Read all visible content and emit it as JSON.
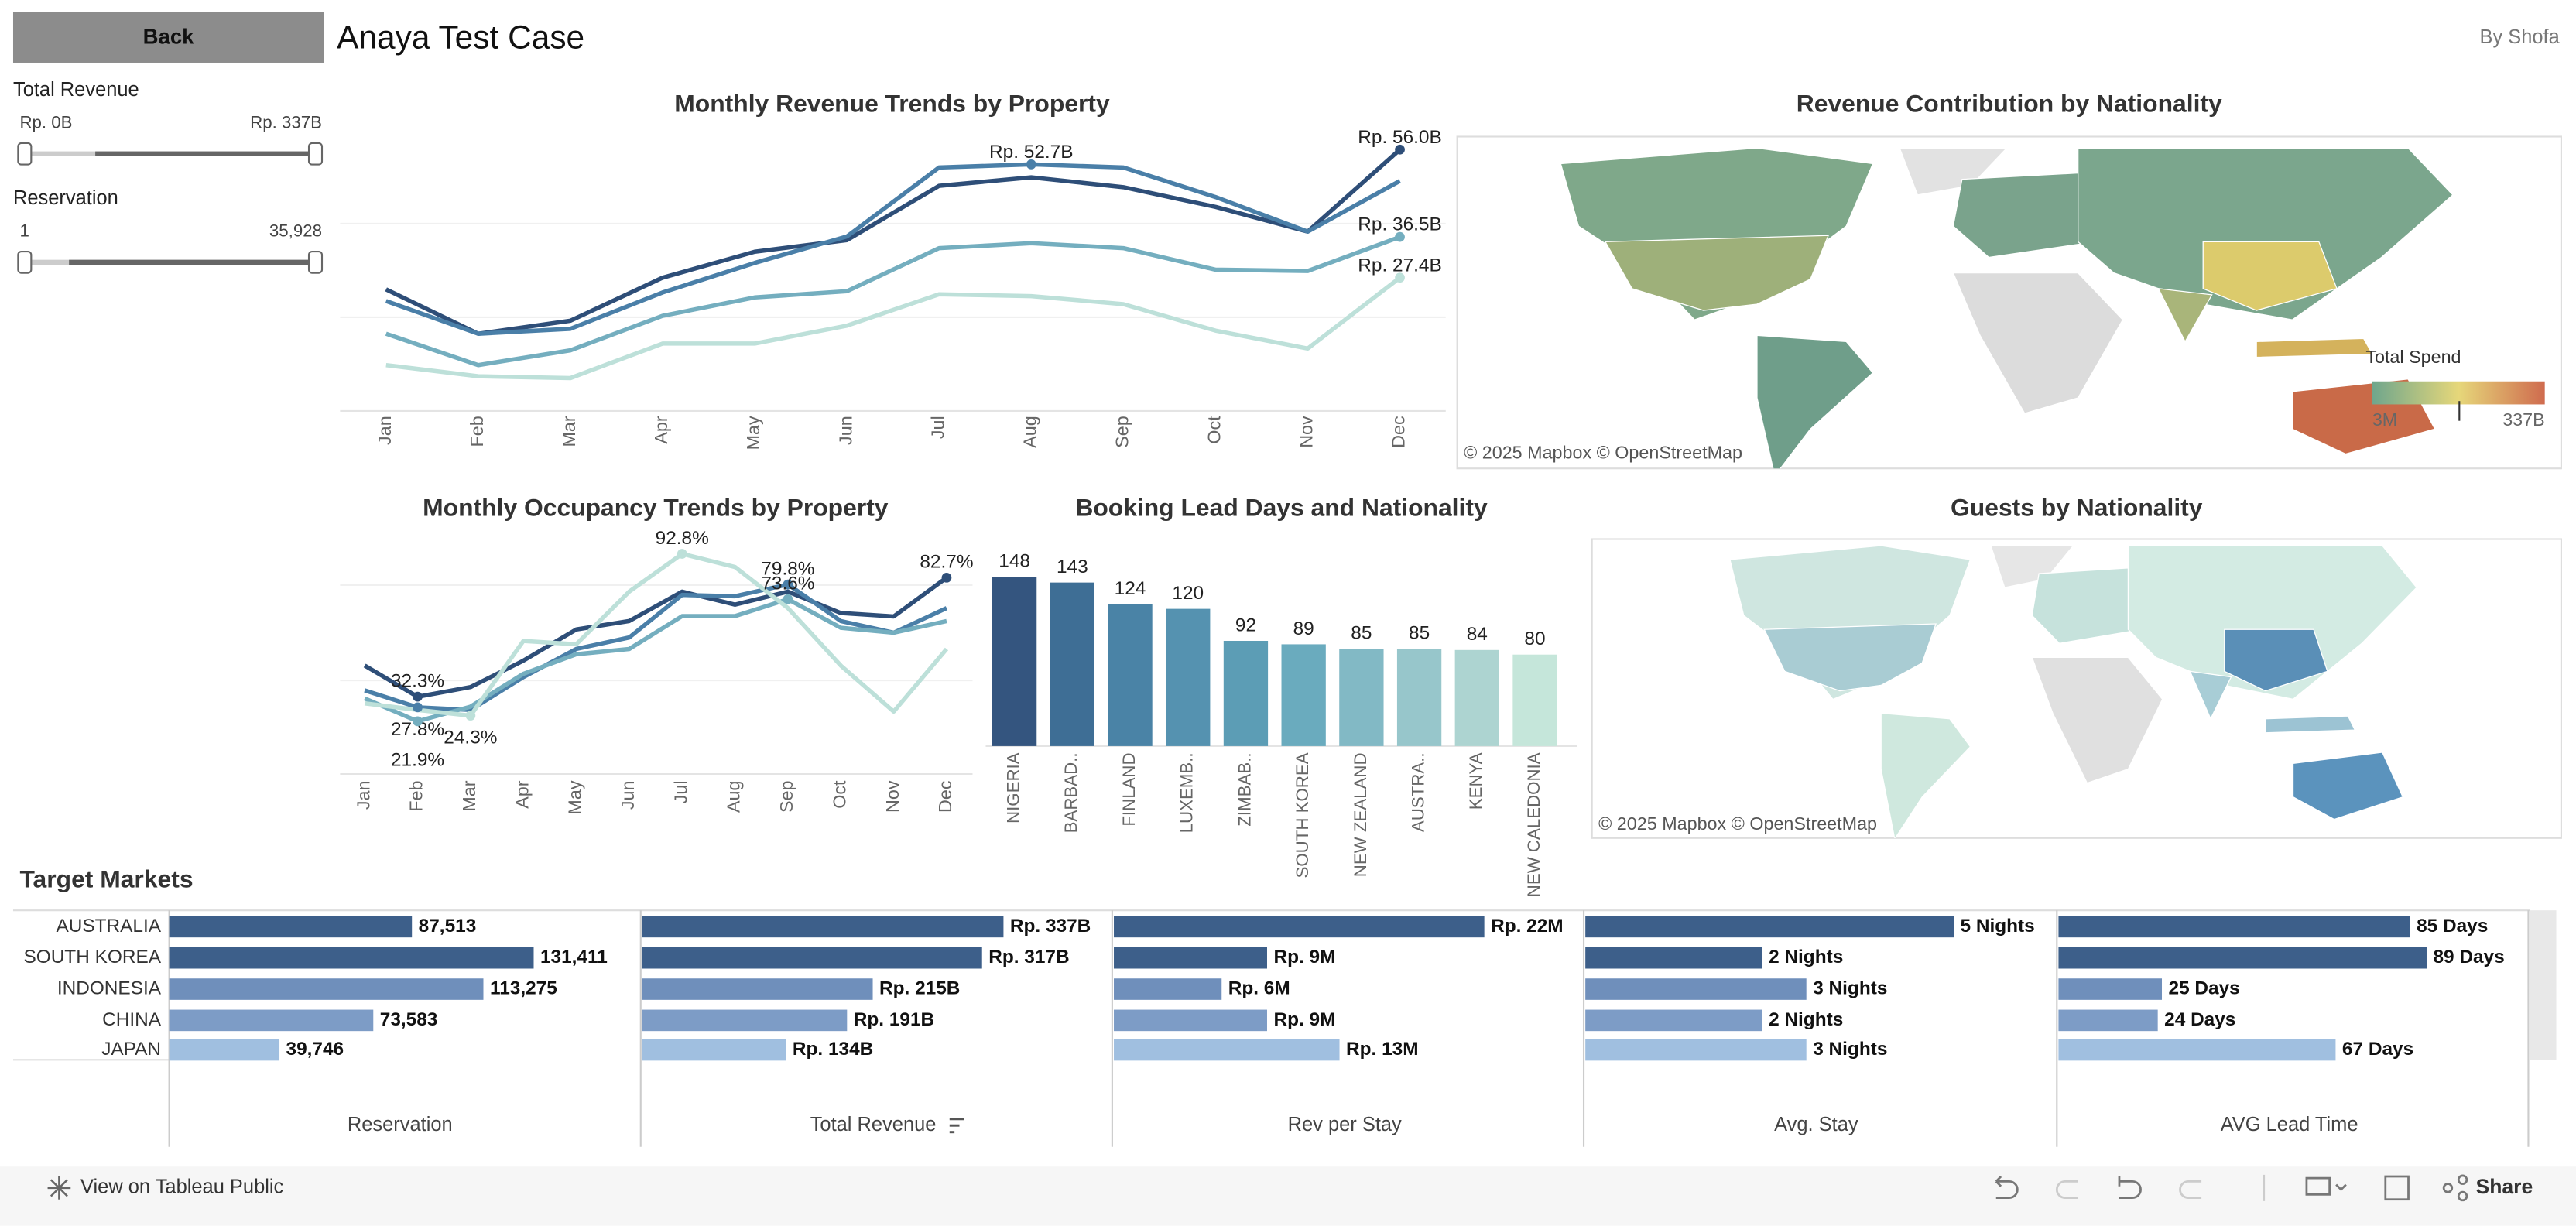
{
  "header": {
    "back": "Back",
    "title": "Anaya Test Case",
    "author": "By Shofa"
  },
  "filters": [
    {
      "label": "Total Revenue",
      "min": "Rp. 0B",
      "max": "Rp. 337B"
    },
    {
      "label": "Reservation",
      "min": "1",
      "max": "35,928"
    }
  ],
  "maps": [
    {
      "title": "Revenue Contribution by Nationality",
      "attribution": "© 2025 Mapbox  © OpenStreetMap",
      "legend": {
        "title": "Total Spend",
        "min": "3M",
        "max": "337B"
      }
    },
    {
      "title": "Guests by Nationality",
      "attribution": "© 2025 Mapbox  © OpenStreetMap"
    }
  ],
  "toolbar": {
    "view": "View on Tableau Public",
    "share": "Share"
  },
  "chart_data": [
    {
      "type": "line",
      "title": "Monthly Revenue Trends by Property",
      "categories": [
        "Jan",
        "Feb",
        "Mar",
        "Apr",
        "May",
        "Jun",
        "Jul",
        "Aug",
        "Sep",
        "Oct",
        "Nov",
        "Dec"
      ],
      "ylim": [
        0,
        60
      ],
      "series": [
        {
          "color": "#2e4e78",
          "values": [
            24.8,
            14.9,
            17.8,
            27.4,
            33.2,
            35.8,
            47.9,
            49.8,
            47.6,
            43.2,
            37.7,
            56.0
          ],
          "value_labels": [
            null,
            null,
            null,
            null,
            null,
            null,
            null,
            null,
            null,
            null,
            null,
            "Rp. 56.0B"
          ]
        },
        {
          "color": "#4a7fa8",
          "values": [
            22.2,
            14.9,
            16.0,
            24.1,
            30.7,
            36.6,
            52.0,
            52.7,
            52.0,
            45.4,
            37.7,
            49.0
          ],
          "value_labels": [
            null,
            null,
            null,
            null,
            null,
            null,
            null,
            "Rp. 52.7B",
            null,
            null,
            null,
            null
          ]
        },
        {
          "color": "#74aebf",
          "values": [
            14.9,
            7.9,
            11.2,
            18.9,
            23.0,
            24.4,
            34.0,
            35.1,
            34.0,
            29.2,
            28.9,
            36.5
          ],
          "value_labels": [
            null,
            null,
            null,
            null,
            null,
            null,
            null,
            null,
            null,
            null,
            null,
            "Rp. 36.5B"
          ]
        },
        {
          "color": "#bde0d9",
          "values": [
            7.9,
            5.4,
            5.0,
            12.7,
            12.7,
            16.7,
            23.7,
            23.3,
            21.5,
            15.6,
            11.6,
            27.4
          ],
          "value_labels": [
            null,
            null,
            null,
            null,
            null,
            null,
            null,
            null,
            null,
            null,
            null,
            "Rp. 27.4B"
          ]
        }
      ]
    },
    {
      "type": "line",
      "title": "Monthly Occupancy Trends by Property",
      "categories": [
        "Jan",
        "Feb",
        "Mar",
        "Apr",
        "May",
        "Jun",
        "Jul",
        "Aug",
        "Sep",
        "Oct",
        "Nov",
        "Dec"
      ],
      "ylim": [
        0,
        100
      ],
      "series": [
        {
          "color": "#2e4e78",
          "values": [
            45.5,
            32.3,
            36.4,
            47.6,
            60.8,
            64.3,
            76.8,
            71.3,
            76.8,
            67.7,
            66.3,
            82.7
          ],
          "value_labels": [
            null,
            "32.3%",
            null,
            null,
            null,
            null,
            null,
            null,
            null,
            null,
            null,
            "82.7%"
          ]
        },
        {
          "color": "#4a7fa8",
          "values": [
            35.0,
            27.8,
            26.7,
            40.6,
            52.5,
            57.4,
            75.4,
            74.8,
            79.8,
            64.3,
            59.4,
            69.8
          ],
          "value_labels": [
            null,
            "27.8%",
            null,
            null,
            null,
            null,
            null,
            null,
            "79.8%",
            null,
            null,
            null
          ]
        },
        {
          "color": "#74aebf",
          "values": [
            31.6,
            21.9,
            28.1,
            42.0,
            50.3,
            52.5,
            66.4,
            66.4,
            73.6,
            61.5,
            59.4,
            64.3
          ],
          "value_labels": [
            null,
            "21.9%",
            null,
            null,
            null,
            null,
            null,
            null,
            "73.6%",
            null,
            null,
            null
          ]
        },
        {
          "color": "#bde0d9",
          "values": [
            29.5,
            26.7,
            24.3,
            55.9,
            54.5,
            76.8,
            92.8,
            87.2,
            69.8,
            45.5,
            26.0,
            52.5
          ],
          "value_labels": [
            null,
            null,
            "24.3%",
            null,
            null,
            null,
            "92.8%",
            null,
            null,
            null,
            null,
            null
          ]
        }
      ]
    },
    {
      "type": "bar",
      "title": "Booking Lead Days and Nationality",
      "categories": [
        "NIGERIA",
        "BARBAD..",
        "FINLAND",
        "LUXEMB..",
        "ZIMBAB..",
        "SOUTH KOREA",
        "NEW ZEALAND",
        "AUSTRA..",
        "KENYA",
        "NEW CALEDONIA"
      ],
      "values": [
        148,
        143,
        124,
        120,
        92,
        89,
        85,
        85,
        84,
        80
      ],
      "colors": [
        "#34557f",
        "#3e6e95",
        "#4a83a6",
        "#5592b0",
        "#5c9db5",
        "#6aabbe",
        "#82b9c5",
        "#97c6cb",
        "#add4d1",
        "#c5e6da"
      ],
      "ylim": [
        0,
        180
      ]
    },
    {
      "type": "hbar",
      "title": "Target Markets",
      "categories": [
        "AUSTRALIA",
        "SOUTH KOREA",
        "INDONESIA",
        "CHINA",
        "JAPAN"
      ],
      "colors": [
        "#3d5f8a",
        "#3d5f8a",
        "#6f8fbb",
        "#7d9cc6",
        "#a0bfe0"
      ],
      "series": [
        {
          "name": "Reservation",
          "values": [
            87513,
            131411,
            113275,
            73583,
            39746
          ],
          "value_labels": [
            "87,513",
            "131,411",
            "113,275",
            "73,583",
            "39,746"
          ],
          "xlim": [
            0,
            170000
          ]
        },
        {
          "name": "Total Revenue",
          "values": [
            337000000000,
            317000000000,
            215000000000,
            191000000000,
            134000000000
          ],
          "value_labels": [
            "Rp. 337B",
            "Rp. 317B",
            "Rp. 215B",
            "Rp. 191B",
            "Rp. 134B"
          ],
          "xlim": [
            0,
            440000000000
          ]
        },
        {
          "name": "Rev per Stay",
          "values": [
            22000000,
            9100000,
            6400000,
            9100000,
            13400000
          ],
          "value_labels": [
            "Rp. 22M",
            "Rp. 9M",
            "Rp. 6M",
            "Rp. 9M",
            "Rp. 13M"
          ],
          "xlim": [
            0,
            28000000
          ]
        },
        {
          "name": "Avg. Stay",
          "values": [
            5.0,
            2.4,
            3.0,
            2.4,
            3.0
          ],
          "value_labels": [
            "5 Nights",
            "2 Nights",
            "3 Nights",
            "2 Nights",
            "3 Nights"
          ],
          "xlim": [
            0,
            6.4
          ]
        },
        {
          "name": "AVG Lead Time",
          "values": [
            85,
            89,
            25,
            24,
            67
          ],
          "value_labels": [
            "85 Days",
            "89 Days",
            "25 Days",
            "24 Days",
            "67 Days"
          ],
          "xlim": [
            0,
            114
          ]
        }
      ]
    }
  ]
}
